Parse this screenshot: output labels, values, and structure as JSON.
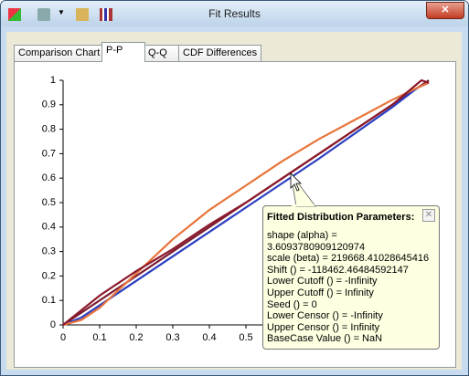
{
  "window": {
    "title": "Fit Results"
  },
  "tabs": [
    "Comparison Chart",
    "P-P",
    "Q-Q",
    "CDF Differences"
  ],
  "chart_data": {
    "type": "line",
    "xlim": [
      0,
      1
    ],
    "ylim": [
      0,
      1
    ],
    "xticks": [
      0,
      0.1,
      0.2,
      0.3,
      0.4,
      0.5
    ],
    "yticks": [
      0,
      0.1,
      0.2,
      0.3,
      0.4,
      0.5,
      0.6,
      0.7,
      0.8,
      0.9,
      1
    ],
    "series": [
      {
        "color": "#7a1a30",
        "x": [
          0,
          1
        ],
        "values": [
          0,
          1
        ]
      },
      {
        "color": "#2b3fc0",
        "x": [
          0,
          0.05,
          0.3,
          0.5,
          0.7,
          0.9,
          0.97,
          1
        ],
        "values": [
          0,
          0.03,
          0.28,
          0.48,
          0.68,
          0.89,
          0.97,
          0.99
        ]
      },
      {
        "color": "#e8743a",
        "x": [
          0,
          0.05,
          0.1,
          0.15,
          0.2,
          0.25,
          0.3,
          0.35,
          0.4,
          0.45,
          0.5,
          0.55,
          0.6,
          0.7,
          0.8,
          0.9,
          0.97,
          1
        ],
        "values": [
          0,
          0.02,
          0.07,
          0.14,
          0.21,
          0.28,
          0.35,
          0.41,
          0.47,
          0.52,
          0.57,
          0.62,
          0.67,
          0.76,
          0.84,
          0.92,
          0.97,
          0.99
        ]
      },
      {
        "color": "#8b1a2b",
        "x": [
          0,
          0.1,
          0.2,
          0.3,
          0.4,
          0.5,
          0.6,
          0.7,
          0.8,
          0.9,
          0.98,
          1
        ],
        "values": [
          0,
          0.12,
          0.22,
          0.31,
          0.41,
          0.5,
          0.6,
          0.7,
          0.8,
          0.9,
          1,
          0.99
        ]
      }
    ]
  },
  "tooltip": {
    "title": "Fitted Distribution Parameters:",
    "lines": [
      "shape (alpha) =",
      "3.6093780909120974",
      "scale (beta) = 219668.41028645416",
      "Shift () = -118462.46484592147",
      "Lower Cutoff () = -Infinity",
      "Upper Cutoff () = Infinity",
      "Seed () = 0",
      "Lower Censor () = -Infinity",
      "Upper Censor () = Infinity",
      "BaseCase Value () = NaN"
    ]
  }
}
